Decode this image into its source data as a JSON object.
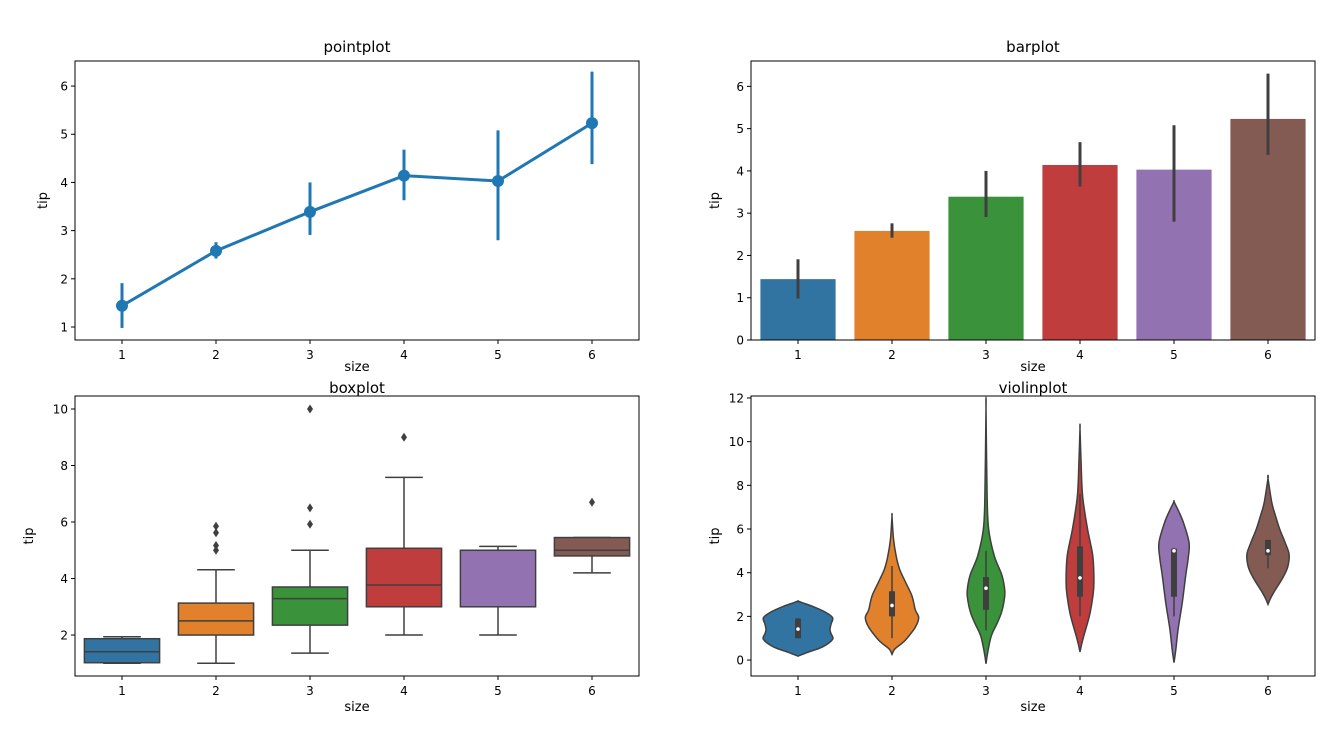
{
  "chart_data": [
    {
      "type": "line",
      "subtype": "pointplot",
      "title": "pointplot",
      "xlabel": "size",
      "ylabel": "tip",
      "categories": [
        "1",
        "2",
        "3",
        "4",
        "5",
        "6"
      ],
      "values": [
        1.44,
        2.58,
        3.39,
        4.14,
        4.03,
        5.23
      ],
      "ci_low": [
        0.98,
        2.42,
        2.91,
        3.63,
        2.8,
        4.38
      ],
      "ci_high": [
        1.91,
        2.76,
        4.0,
        4.68,
        5.08,
        6.3
      ],
      "ylim": [
        0.73,
        6.52
      ],
      "yticks": [
        1,
        2,
        3,
        4,
        5,
        6
      ],
      "color": "#1f77b4"
    },
    {
      "type": "bar",
      "subtype": "barplot",
      "title": "barplot",
      "xlabel": "size",
      "ylabel": "tip",
      "categories": [
        "1",
        "2",
        "3",
        "4",
        "5",
        "6"
      ],
      "values": [
        1.44,
        2.58,
        3.39,
        4.14,
        4.03,
        5.23
      ],
      "ci_low": [
        0.98,
        2.42,
        2.91,
        3.63,
        2.8,
        4.38
      ],
      "ci_high": [
        1.91,
        2.76,
        4.0,
        4.68,
        5.08,
        6.3
      ],
      "ylim": [
        0,
        6.6
      ],
      "yticks": [
        0,
        1,
        2,
        3,
        4,
        5,
        6
      ],
      "colors": [
        "#3274a1",
        "#e1812c",
        "#3a923a",
        "#c03d3e",
        "#9372b2",
        "#845b53"
      ]
    },
    {
      "type": "box",
      "subtype": "boxplot",
      "title": "boxplot",
      "xlabel": "size",
      "ylabel": "tip",
      "categories": [
        "1",
        "2",
        "3",
        "4",
        "5",
        "6"
      ],
      "boxes": [
        {
          "whislo": 1.0,
          "q1": 1.02,
          "med": 1.41,
          "q3": 1.87,
          "whishi": 1.94,
          "fliers": []
        },
        {
          "whislo": 1.0,
          "q1": 2.0,
          "med": 2.5,
          "q3": 3.13,
          "whishi": 4.31,
          "fliers": [
            5.0,
            5.17,
            5.62,
            5.85
          ]
        },
        {
          "whislo": 1.36,
          "q1": 2.35,
          "med": 3.29,
          "q3": 3.7,
          "whishi": 5.0,
          "fliers": [
            5.92,
            6.5,
            10.0
          ]
        },
        {
          "whislo": 2.0,
          "q1": 3.0,
          "med": 3.77,
          "q3": 5.07,
          "whishi": 7.58,
          "fliers": [
            9.0
          ]
        },
        {
          "whislo": 2.0,
          "q1": 3.0,
          "med": 5.0,
          "q3": 5.0,
          "whishi": 5.14,
          "fliers": []
        },
        {
          "whislo": 4.2,
          "q1": 4.8,
          "med": 5.0,
          "q3": 5.45,
          "whishi": 5.45,
          "fliers": [
            6.7
          ]
        }
      ],
      "ylim": [
        0.55,
        10.46
      ],
      "yticks": [
        2,
        4,
        6,
        8,
        10
      ],
      "colors": [
        "#3274a1",
        "#e1812c",
        "#3a923a",
        "#c03d3e",
        "#9372b2",
        "#845b53"
      ]
    },
    {
      "type": "violin",
      "subtype": "violinplot",
      "title": "violinplot",
      "xlabel": "size",
      "ylabel": "tip",
      "categories": [
        "1",
        "2",
        "3",
        "4",
        "5",
        "6"
      ],
      "density_profiles": [
        [
          [
            0.18,
            0
          ],
          [
            0.35,
            0.25
          ],
          [
            0.6,
            0.65
          ],
          [
            0.95,
            0.92
          ],
          [
            1.2,
            0.88
          ],
          [
            1.4,
            0.85
          ],
          [
            1.65,
            0.88
          ],
          [
            1.94,
            0.92
          ],
          [
            2.2,
            0.72
          ],
          [
            2.45,
            0.4
          ],
          [
            2.62,
            0.12
          ],
          [
            2.7,
            0
          ]
        ],
        [
          [
            0.26,
            0
          ],
          [
            0.5,
            0.07
          ],
          [
            0.75,
            0.25
          ],
          [
            0.96,
            0.38
          ],
          [
            1.5,
            0.62
          ],
          [
            1.94,
            0.71
          ],
          [
            2.3,
            0.62
          ],
          [
            2.94,
            0.53
          ],
          [
            3.6,
            0.35
          ],
          [
            4.17,
            0.2
          ],
          [
            4.77,
            0.11
          ],
          [
            5.55,
            0.04
          ],
          [
            6.58,
            0
          ]
        ],
        [
          [
            -0.17,
            0
          ],
          [
            0.3,
            0.04
          ],
          [
            1.1,
            0.14
          ],
          [
            1.7,
            0.3
          ],
          [
            2.17,
            0.41
          ],
          [
            2.7,
            0.48
          ],
          [
            3.17,
            0.5
          ],
          [
            3.9,
            0.42
          ],
          [
            4.77,
            0.22
          ],
          [
            6.0,
            0.07
          ],
          [
            7.5,
            0.03
          ],
          [
            11.53,
            0
          ]
        ],
        [
          [
            0.37,
            0
          ],
          [
            0.7,
            0.04
          ],
          [
            1.1,
            0.1
          ],
          [
            1.7,
            0.2
          ],
          [
            2.17,
            0.27
          ],
          [
            2.9,
            0.34
          ],
          [
            3.55,
            0.37
          ],
          [
            4.77,
            0.34
          ],
          [
            6.0,
            0.2
          ],
          [
            7.5,
            0.07
          ],
          [
            9.0,
            0.03
          ],
          [
            10.6,
            0
          ]
        ],
        [
          [
            -0.12,
            0
          ],
          [
            0.5,
            0.05
          ],
          [
            1.42,
            0.11
          ],
          [
            2.63,
            0.22
          ],
          [
            3.85,
            0.31
          ],
          [
            4.7,
            0.38
          ],
          [
            5.38,
            0.4
          ],
          [
            6.3,
            0.25
          ],
          [
            6.9,
            0.1
          ],
          [
            7.25,
            0
          ]
        ],
        [
          [
            2.55,
            0
          ],
          [
            2.8,
            0.06
          ],
          [
            3.09,
            0.15
          ],
          [
            3.5,
            0.3
          ],
          [
            3.85,
            0.42
          ],
          [
            4.3,
            0.53
          ],
          [
            4.85,
            0.56
          ],
          [
            5.4,
            0.45
          ],
          [
            6.0,
            0.31
          ],
          [
            6.6,
            0.2
          ],
          [
            7.22,
            0.1
          ],
          [
            8.32,
            0
          ]
        ]
      ],
      "inner_box": [
        {
          "whislo": 1.0,
          "q1": 1.0,
          "med": 1.42,
          "q3": 1.9,
          "whishi": 1.92
        },
        {
          "whislo": 1.0,
          "q1": 2.0,
          "med": 2.5,
          "q3": 3.15,
          "whishi": 4.3
        },
        {
          "whislo": 1.36,
          "q1": 2.3,
          "med": 3.29,
          "q3": 3.8,
          "whishi": 5.0
        },
        {
          "whislo": 2.0,
          "q1": 2.9,
          "med": 3.76,
          "q3": 5.2,
          "whishi": 7.6
        },
        {
          "whislo": 2.0,
          "q1": 2.9,
          "med": 5.0,
          "q3": 5.1,
          "whishi": 5.14
        },
        {
          "whislo": 4.2,
          "q1": 4.8,
          "med": 5.0,
          "q3": 5.5,
          "whishi": 5.5
        }
      ],
      "ylim": [
        -0.73,
        12.09
      ],
      "yticks": [
        0,
        2,
        4,
        6,
        8,
        10,
        12
      ],
      "colors": [
        "#3274a1",
        "#e1812c",
        "#3a923a",
        "#c03d3e",
        "#9372b2",
        "#845b53"
      ]
    }
  ]
}
